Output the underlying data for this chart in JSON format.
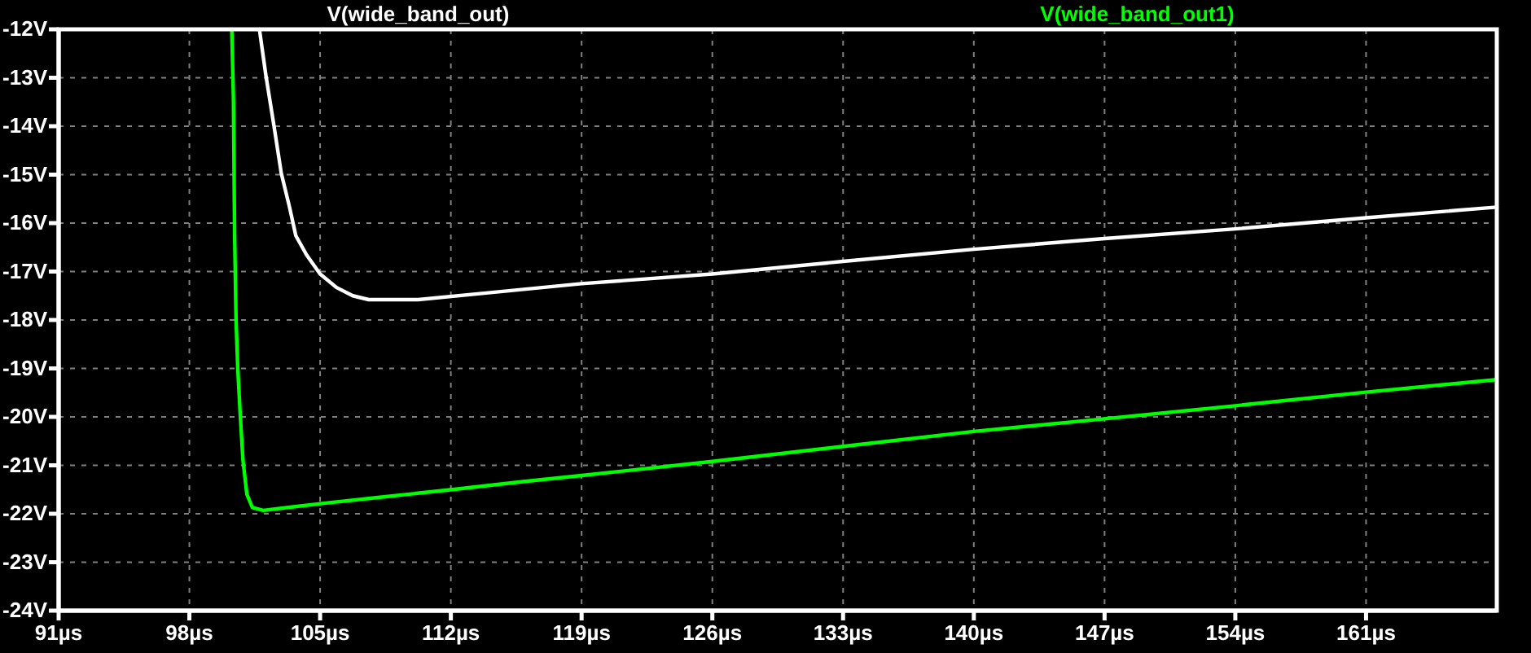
{
  "chart_data": {
    "type": "line",
    "xlim": [
      91,
      168
    ],
    "xticks": [
      {
        "value": 91,
        "label": "91µs"
      },
      {
        "value": 98,
        "label": "98µs"
      },
      {
        "value": 105,
        "label": "105µs"
      },
      {
        "value": 112,
        "label": "112µs"
      },
      {
        "value": 119,
        "label": "119µs"
      },
      {
        "value": 126,
        "label": "126µs"
      },
      {
        "value": 133,
        "label": "133µs"
      },
      {
        "value": 140,
        "label": "140µs"
      },
      {
        "value": 147,
        "label": "147µs"
      },
      {
        "value": 154,
        "label": "154µs"
      },
      {
        "value": 161,
        "label": "161µs"
      }
    ],
    "ylim": [
      -24,
      -12
    ],
    "yticks": [
      {
        "value": -24,
        "label": "-24V"
      },
      {
        "value": -23,
        "label": "-23V"
      },
      {
        "value": -22,
        "label": "-22V"
      },
      {
        "value": -21,
        "label": "-21V"
      },
      {
        "value": -20,
        "label": "-20V"
      },
      {
        "value": -19,
        "label": "-19V"
      },
      {
        "value": -18,
        "label": "-18V"
      },
      {
        "value": -17,
        "label": "-17V"
      },
      {
        "value": -16,
        "label": "-16V"
      },
      {
        "value": -15,
        "label": "-15V"
      },
      {
        "value": -14,
        "label": "-14V"
      },
      {
        "value": -13,
        "label": "-13V"
      },
      {
        "value": -12,
        "label": "-12V"
      }
    ],
    "grid": true,
    "legend": "top",
    "line_style": "solid",
    "series": [
      {
        "name": "V(wide_band_out)",
        "color": "#ffffff",
        "x": [
          101.75,
          102.1,
          102.54,
          102.92,
          103.35,
          103.7,
          104.28,
          105.0,
          105.88,
          106.75,
          107.6,
          110.25,
          114.0,
          119,
          126,
          133,
          140,
          147,
          154,
          161,
          168
        ],
        "values": [
          -12,
          -12.96,
          -14.02,
          -14.97,
          -15.65,
          -16.26,
          -16.66,
          -17.05,
          -17.33,
          -17.5,
          -17.58,
          -17.58,
          -17.44,
          -17.25,
          -17.05,
          -16.79,
          -16.54,
          -16.32,
          -16.12,
          -15.89,
          -15.67
        ]
      },
      {
        "name": "V(wide_band_out1)",
        "color": "#00ff00",
        "x": [
          100.27,
          100.36,
          100.42,
          100.5,
          100.59,
          100.73,
          100.87,
          101.08,
          101.37,
          101.96,
          103.27,
          105.3,
          108.2,
          112.08,
          115.76,
          119,
          126,
          133,
          140,
          147,
          154,
          161,
          168
        ],
        "values": [
          -12,
          -13.46,
          -16.2,
          -18.0,
          -19.0,
          -20.0,
          -20.9,
          -21.6,
          -21.87,
          -21.93,
          -21.87,
          -21.78,
          -21.66,
          -21.5,
          -21.34,
          -21.21,
          -20.92,
          -20.61,
          -20.3,
          -20.04,
          -19.77,
          -19.49,
          -19.23
        ]
      }
    ]
  }
}
